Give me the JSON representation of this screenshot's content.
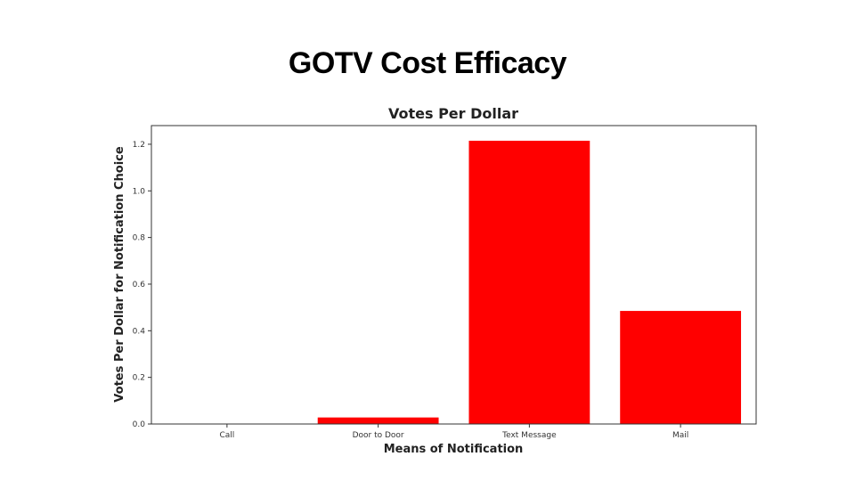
{
  "slide": {
    "title": "GOTV Cost Efficacy"
  },
  "chart_data": {
    "type": "bar",
    "title": "Votes Per Dollar",
    "xlabel": "Means of Notification",
    "ylabel": "Votes Per Dollar for Notification Choice",
    "categories": [
      "Call",
      "Door to Door",
      "Text Message",
      "Mail"
    ],
    "values": [
      0.0,
      0.028,
      1.215,
      0.485
    ],
    "ylim": [
      0,
      1.28
    ],
    "yticks": [
      0.0,
      0.2,
      0.4,
      0.6,
      0.8,
      1.0,
      1.2
    ],
    "bar_color": "#ff0000",
    "grid": false,
    "legend": "none"
  }
}
